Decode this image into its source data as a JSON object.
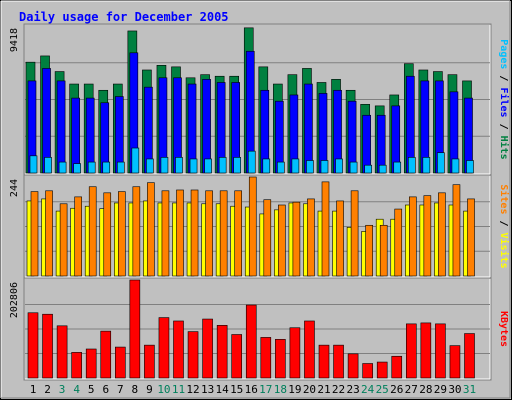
{
  "chart_data": {
    "type": "bar",
    "title": "Daily usage for December 2005",
    "days": [
      "1",
      "2",
      "3",
      "4",
      "5",
      "6",
      "7",
      "8",
      "9",
      "10",
      "11",
      "12",
      "13",
      "14",
      "15",
      "16",
      "17",
      "18",
      "19",
      "20",
      "21",
      "22",
      "23",
      "24",
      "25",
      "26",
      "27",
      "28",
      "29",
      "30",
      "31"
    ],
    "weekend_days": [
      "3",
      "4",
      "10",
      "11",
      "17",
      "18",
      "24",
      "25",
      "31"
    ],
    "colors": {
      "title": "#0000ff",
      "hits": "#008040",
      "files": "#0000ff",
      "pages": "#00c0ff",
      "visits": "#ffff00",
      "sites": "#ff8000",
      "kbytes": "#ff0000",
      "weekend_label": "#00805c",
      "weekday_label": "#000000",
      "panel_bg": "#c0c0c0"
    },
    "panels": [
      {
        "name": "hits-files-pages",
        "ymax_label": "9418",
        "ymax": 9418,
        "right_label_parts": [
          {
            "text": "Pages",
            "color": "#00c0ff"
          },
          {
            "text": " / ",
            "color": "#000000"
          },
          {
            "text": "Files",
            "color": "#0000ff"
          },
          {
            "text": " / ",
            "color": "#000000"
          },
          {
            "text": "Hits",
            "color": "#008040"
          }
        ],
        "series": [
          {
            "name": "Hits",
            "values": [
              7100,
              7500,
              6500,
              5700,
              5700,
              5300,
              5700,
              9100,
              6600,
              6900,
              6800,
              6100,
              6300,
              6200,
              6200,
              9300,
              6800,
              5700,
              6300,
              6700,
              5800,
              6000,
              5300,
              4400,
              4300,
              5000,
              7000,
              6600,
              6500,
              6300,
              5900
            ]
          },
          {
            "name": "Files",
            "values": [
              5900,
              6700,
              5900,
              4800,
              4800,
              4500,
              4900,
              7700,
              5500,
              6100,
              6100,
              5700,
              6000,
              5800,
              5800,
              7800,
              5300,
              4600,
              5000,
              5700,
              5100,
              5300,
              4600,
              3700,
              3700,
              4300,
              6200,
              5900,
              5900,
              5200,
              4800
            ]
          },
          {
            "name": "Pages",
            "values": [
              1100,
              1000,
              700,
              600,
              700,
              700,
              700,
              1600,
              900,
              1000,
              1000,
              900,
              900,
              1000,
              1000,
              1400,
              900,
              700,
              900,
              800,
              800,
              900,
              700,
              500,
              500,
              700,
              1000,
              1000,
              1300,
              900,
              800
            ]
          }
        ]
      },
      {
        "name": "visits-sites",
        "ymax_label": "244",
        "ymax": 244,
        "right_label_parts": [
          {
            "text": "Sites",
            "color": "#ff8000"
          },
          {
            "text": " / ",
            "color": "#000000"
          },
          {
            "text": "Visits",
            "color": "#ffff00"
          }
        ],
        "series": [
          {
            "name": "Visits",
            "values": [
              185,
              190,
              160,
              167,
              172,
              166,
              180,
              180,
              185,
              180,
              180,
              180,
              178,
              178,
              172,
              170,
              153,
              163,
              180,
              178,
              160,
              160,
              120,
              110,
              140,
              140,
              175,
              175,
              180,
              175,
              160
            ]
          },
          {
            "name": "Sites",
            "values": [
              208,
              210,
              178,
              195,
              220,
              205,
              208,
              220,
              230,
              210,
              212,
              212,
              210,
              210,
              210,
              244,
              188,
              175,
              182,
              190,
              232,
              185,
              210,
              125,
              125,
              165,
              195,
              198,
              205,
              225,
              190
            ]
          }
        ]
      },
      {
        "name": "kbytes",
        "ymax_label": "202806",
        "ymax": 202806,
        "right_label_parts": [
          {
            "text": "KBytes",
            "color": "#ff0000"
          }
        ],
        "series": [
          {
            "name": "KBytes",
            "values": [
              135000,
              132000,
              108000,
              53000,
              60000,
              97000,
              64000,
              202806,
              68000,
              125000,
              118000,
              96000,
              122000,
              109000,
              90000,
              151000,
              84000,
              80000,
              104000,
              118000,
              68000,
              68000,
              50000,
              30000,
              33000,
              45000,
              112000,
              114000,
              112000,
              67000,
              92000
            ]
          }
        ]
      }
    ]
  }
}
